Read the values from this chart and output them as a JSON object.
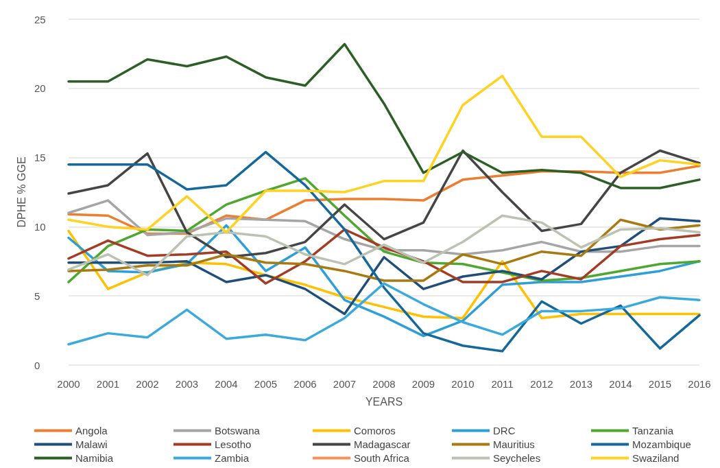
{
  "chart_data": {
    "type": "line",
    "xlabel": "YEARS",
    "ylabel": "DPHE % GGE",
    "categories": [
      "2000",
      "2001",
      "2002",
      "2003",
      "2004",
      "2005",
      "2006",
      "2007",
      "2008",
      "2009",
      "2010",
      "2011",
      "2012",
      "2013",
      "2014",
      "2015",
      "2016"
    ],
    "ylim": [
      0,
      25
    ],
    "yticks": [
      0,
      5,
      10,
      15,
      20,
      25
    ],
    "grid": "y",
    "legend": "bottom",
    "marker": "none",
    "line_style": "solid",
    "series": [
      {
        "name": "Angola",
        "color": "#ed7d31",
        "values": [
          10.9,
          10.8,
          9.5,
          9.5,
          10.8,
          10.5,
          11.9,
          12.0,
          12.0,
          11.9,
          13.4,
          13.7,
          14.0,
          14.0,
          13.9,
          13.9,
          14.4
        ]
      },
      {
        "name": "Botswana",
        "color": "#a5a5a5",
        "values": [
          11.0,
          11.9,
          9.4,
          9.6,
          10.6,
          10.5,
          10.4,
          9.1,
          8.3,
          8.3,
          8.0,
          8.3,
          8.9,
          8.2,
          8.2,
          8.6,
          8.6
        ]
      },
      {
        "name": "Comoros",
        "color": "#ffc000",
        "values": [
          9.7,
          5.5,
          6.7,
          7.4,
          7.3,
          6.5,
          5.8,
          4.9,
          4.2,
          3.5,
          3.4,
          7.5,
          3.4,
          3.7,
          3.7,
          3.7,
          3.7
        ]
      },
      {
        "name": "DRC",
        "color": "#2e9fd6",
        "values": [
          9.2,
          6.8,
          6.7,
          7.3,
          10.1,
          6.8,
          8.5,
          4.7,
          3.5,
          2.1,
          3.2,
          5.8,
          6.0,
          6.0,
          6.4,
          6.8,
          7.5
        ]
      },
      {
        "name": "Tanzania",
        "color": "#4ea72e",
        "values": [
          6.0,
          8.6,
          9.8,
          9.7,
          11.6,
          12.6,
          13.5,
          10.8,
          8.2,
          7.4,
          7.3,
          6.7,
          6.1,
          6.3,
          6.8,
          7.3,
          7.5
        ]
      },
      {
        "name": "Malawi",
        "color": "#1f4e79",
        "values": [
          7.4,
          7.4,
          7.4,
          7.5,
          6.0,
          6.5,
          5.5,
          3.7,
          7.8,
          5.5,
          6.4,
          6.8,
          6.2,
          8.2,
          8.6,
          10.6,
          10.4
        ]
      },
      {
        "name": "Lesotho",
        "color": "#a33b25",
        "values": [
          7.7,
          9.0,
          7.9,
          8.0,
          8.2,
          5.9,
          7.5,
          9.8,
          8.5,
          7.5,
          6.0,
          6.0,
          6.8,
          6.2,
          8.6,
          9.1,
          9.4
        ]
      },
      {
        "name": "Madagascar",
        "color": "#454545",
        "values": [
          12.4,
          13.0,
          15.3,
          9.6,
          7.8,
          8.1,
          8.9,
          11.6,
          9.1,
          10.3,
          15.5,
          12.5,
          9.7,
          10.2,
          13.9,
          15.5,
          14.6
        ]
      },
      {
        "name": "Mauritius",
        "color": "#a7790f",
        "values": [
          6.8,
          6.9,
          7.2,
          7.2,
          8.0,
          7.4,
          7.3,
          6.8,
          6.1,
          6.1,
          8.0,
          7.3,
          8.2,
          7.9,
          10.5,
          9.8,
          10.1
        ]
      },
      {
        "name": "Mozambique",
        "color": "#15689a",
        "values": [
          14.5,
          14.5,
          14.5,
          12.7,
          13.0,
          15.4,
          13.0,
          9.8,
          5.6,
          2.3,
          1.4,
          1.0,
          4.6,
          3.0,
          4.3,
          1.2,
          3.6
        ]
      },
      {
        "name": "Namibia",
        "color": "#2c5f25",
        "values": [
          20.5,
          20.5,
          22.1,
          21.6,
          22.3,
          20.8,
          20.2,
          23.2,
          18.9,
          13.9,
          15.4,
          13.9,
          14.1,
          13.9,
          12.8,
          12.8,
          13.4
        ]
      },
      {
        "name": "Zambia",
        "color": "#3aa9db",
        "values": [
          1.5,
          2.3,
          2.0,
          4.0,
          1.9,
          2.2,
          1.8,
          3.4,
          5.9,
          4.4,
          3.1,
          2.2,
          3.9,
          3.9,
          4.1,
          4.9,
          4.7
        ]
      },
      {
        "name": "South Africa",
        "color": "#f4925a",
        "values": [
          null,
          null,
          null,
          null,
          null,
          null,
          null,
          null,
          null,
          null,
          null,
          null,
          null,
          null,
          null,
          null,
          null
        ]
      },
      {
        "name": "Seycheles",
        "color": "#bcc2b2",
        "values": [
          6.9,
          8.0,
          6.5,
          9.3,
          9.6,
          9.3,
          8.0,
          7.3,
          8.7,
          7.4,
          8.9,
          10.8,
          10.3,
          8.5,
          9.8,
          9.9,
          9.6
        ]
      },
      {
        "name": "Swaziland",
        "color": "#ffd21f",
        "values": [
          10.5,
          10.0,
          9.8,
          12.2,
          9.6,
          12.6,
          12.6,
          12.5,
          13.3,
          13.3,
          18.8,
          20.9,
          16.5,
          16.5,
          13.6,
          14.8,
          14.5
        ]
      }
    ]
  }
}
